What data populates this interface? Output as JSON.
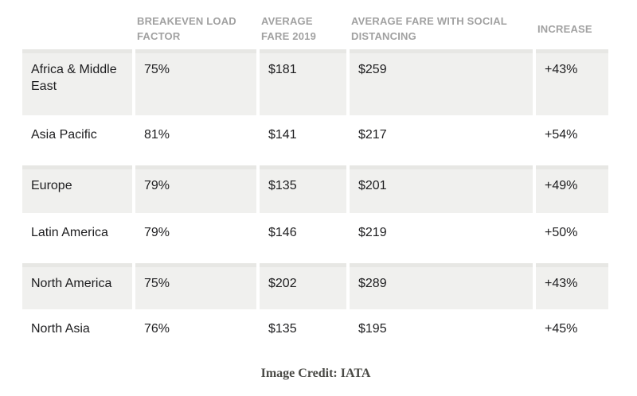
{
  "chart_data": {
    "type": "table",
    "columns": [
      "",
      "BREAKEVEN LOAD FACTOR",
      "AVERAGE FARE 2019",
      "AVERAGE FARE WITH SOCIAL DISTANCING",
      "INCREASE"
    ],
    "rows": [
      {
        "region": "Africa & Middle East",
        "breakeven_load_factor": "75%",
        "average_fare_2019": "$181",
        "average_fare_with_social_distancing": "$259",
        "increase": "+43%"
      },
      {
        "region": "Asia Pacific",
        "breakeven_load_factor": "81%",
        "average_fare_2019": "$141",
        "average_fare_with_social_distancing": "$217",
        "increase": "+54%"
      },
      {
        "region": "Europe",
        "breakeven_load_factor": "79%",
        "average_fare_2019": "$135",
        "average_fare_with_social_distancing": "$201",
        "increase": "+49%"
      },
      {
        "region": "Latin America",
        "breakeven_load_factor": "79%",
        "average_fare_2019": "$146",
        "average_fare_with_social_distancing": "$219",
        "increase": "+50%"
      },
      {
        "region": "North America",
        "breakeven_load_factor": "75%",
        "average_fare_2019": "$202",
        "average_fare_with_social_distancing": "$289",
        "increase": "+43%"
      },
      {
        "region": "North Asia",
        "breakeven_load_factor": "76%",
        "average_fare_2019": "$135",
        "average_fare_with_social_distancing": "$195",
        "increase": "+45%"
      }
    ],
    "legend": "none",
    "grid": "alternating-row-shading"
  },
  "caption": "Image Credit: IATA",
  "colors": {
    "row_shade": "#f0f0ee",
    "row_shade_top": "#e7e7e4",
    "header_text": "#a1a1a1",
    "body_text": "#1d1d1f",
    "caption_text": "#4a4a46"
  }
}
